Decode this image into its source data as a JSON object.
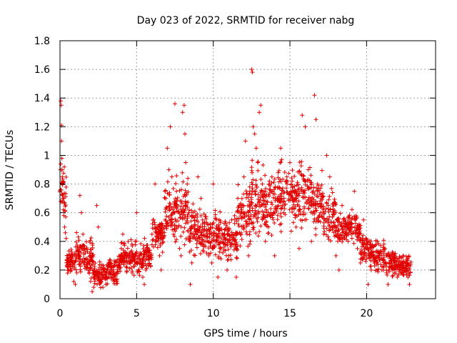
{
  "chart_data": {
    "type": "scatter",
    "title": "Day 023 of 2022, SRMTID for receiver nabg",
    "xlabel": "GPS time / hours",
    "ylabel": "SRMTID / TECUs",
    "xlim": [
      0,
      24.5
    ],
    "ylim": [
      0,
      1.8
    ],
    "x_ticks": [
      0,
      5,
      10,
      15,
      20
    ],
    "x_tick_labels": [
      "0",
      "5",
      "10",
      "15",
      "20"
    ],
    "y_ticks": [
      0,
      0.2,
      0.4,
      0.6,
      0.8,
      1.0,
      1.2,
      1.4,
      1.6,
      1.8
    ],
    "y_tick_labels": [
      "0",
      "0.2",
      "0.4",
      "0.6",
      "0.8",
      "1",
      "1.2",
      "1.4",
      "1.6",
      "1.8"
    ],
    "grid": true,
    "marker": "+",
    "color": "#e00000",
    "series": [
      {
        "name": "SRMTID",
        "points": [
          [
            0.05,
            1.38
          ],
          [
            0.08,
            1.35
          ],
          [
            0.1,
            1.21
          ],
          [
            0.1,
            1.1
          ],
          [
            0.12,
            0.98
          ],
          [
            0.12,
            0.9
          ],
          [
            0.15,
            0.85
          ],
          [
            0.18,
            0.82
          ],
          [
            0.2,
            0.7
          ],
          [
            0.22,
            0.62
          ],
          [
            0.25,
            0.58
          ],
          [
            0.3,
            0.5
          ],
          [
            0.35,
            0.46
          ],
          [
            0.4,
            0.42
          ],
          [
            0.45,
            0.25
          ],
          [
            0.5,
            0.22
          ],
          [
            0.6,
            0.3
          ],
          [
            0.7,
            0.2
          ],
          [
            0.8,
            0.25
          ],
          [
            0.9,
            0.12
          ],
          [
            1.0,
            0.1
          ],
          [
            1.1,
            0.18
          ],
          [
            1.2,
            0.3
          ],
          [
            1.3,
            0.72
          ],
          [
            1.4,
            0.6
          ],
          [
            1.5,
            0.45
          ],
          [
            1.6,
            0.35
          ],
          [
            1.7,
            0.28
          ],
          [
            1.8,
            0.22
          ],
          [
            1.9,
            0.18
          ],
          [
            2.0,
            0.12
          ],
          [
            2.1,
            0.05
          ],
          [
            2.2,
            0.08
          ],
          [
            2.3,
            0.18
          ],
          [
            2.4,
            0.65
          ],
          [
            2.5,
            0.5
          ],
          [
            2.6,
            0.22
          ],
          [
            2.7,
            0.12
          ],
          [
            2.8,
            0.08
          ],
          [
            3.0,
            0.1
          ],
          [
            3.2,
            0.15
          ],
          [
            3.4,
            0.2
          ],
          [
            3.5,
            0.12
          ],
          [
            3.7,
            0.18
          ],
          [
            3.9,
            0.25
          ],
          [
            4.0,
            0.35
          ],
          [
            4.1,
            0.45
          ],
          [
            4.3,
            0.3
          ],
          [
            4.5,
            0.25
          ],
          [
            4.7,
            0.18
          ],
          [
            4.9,
            0.4
          ],
          [
            5.0,
            0.6
          ],
          [
            5.2,
            0.3
          ],
          [
            5.4,
            0.15
          ],
          [
            5.5,
            0.1
          ],
          [
            5.6,
            0.2
          ],
          [
            5.8,
            0.3
          ],
          [
            6.0,
            0.45
          ],
          [
            6.1,
            0.55
          ],
          [
            6.2,
            0.8
          ],
          [
            6.3,
            0.4
          ],
          [
            6.5,
            0.3
          ],
          [
            6.6,
            0.2
          ],
          [
            6.8,
            0.5
          ],
          [
            6.9,
            0.7
          ],
          [
            7.0,
            1.05
          ],
          [
            7.1,
            0.9
          ],
          [
            7.2,
            1.2
          ],
          [
            7.3,
            0.85
          ],
          [
            7.4,
            0.6
          ],
          [
            7.5,
            1.36
          ],
          [
            7.6,
            0.75
          ],
          [
            7.7,
            0.5
          ],
          [
            7.8,
            0.35
          ],
          [
            7.9,
            0.3
          ],
          [
            8.0,
            1.3
          ],
          [
            8.1,
            1.35
          ],
          [
            8.15,
            1.15
          ],
          [
            8.2,
            0.95
          ],
          [
            8.3,
            0.8
          ],
          [
            8.4,
            0.6
          ],
          [
            8.5,
            0.1
          ],
          [
            8.6,
            0.25
          ],
          [
            8.8,
            0.45
          ],
          [
            9.0,
            0.85
          ],
          [
            9.2,
            0.7
          ],
          [
            9.3,
            0.55
          ],
          [
            9.5,
            0.4
          ],
          [
            9.7,
            0.3
          ],
          [
            9.9,
            0.25
          ],
          [
            10.0,
            0.8
          ],
          [
            10.2,
            0.55
          ],
          [
            10.3,
            0.15
          ],
          [
            10.5,
            0.35
          ],
          [
            10.7,
            0.45
          ],
          [
            10.9,
            0.2
          ],
          [
            11.0,
            0.3
          ],
          [
            11.2,
            0.55
          ],
          [
            11.4,
            0.4
          ],
          [
            11.5,
            0.15
          ],
          [
            11.6,
            0.7
          ],
          [
            11.8,
            0.6
          ],
          [
            12.0,
            0.85
          ],
          [
            12.1,
            1.1
          ],
          [
            12.2,
            0.45
          ],
          [
            12.3,
            0.3
          ],
          [
            12.4,
            0.65
          ],
          [
            12.5,
            1.6
          ],
          [
            12.55,
            1.58
          ],
          [
            12.6,
            1.2
          ],
          [
            12.7,
            1.15
          ],
          [
            12.8,
            1.05
          ],
          [
            12.9,
            0.95
          ],
          [
            13.0,
            1.3
          ],
          [
            13.1,
            1.35
          ],
          [
            13.2,
            0.8
          ],
          [
            13.3,
            0.6
          ],
          [
            13.4,
            0.4
          ],
          [
            13.6,
            0.5
          ],
          [
            13.8,
            0.75
          ],
          [
            14.0,
            0.3
          ],
          [
            14.2,
            0.7
          ],
          [
            14.4,
            1.05
          ],
          [
            14.6,
            0.6
          ],
          [
            14.8,
            0.85
          ],
          [
            15.0,
            0.95
          ],
          [
            15.2,
            0.75
          ],
          [
            15.4,
            0.5
          ],
          [
            15.6,
            0.35
          ],
          [
            15.8,
            1.28
          ],
          [
            16.0,
            1.2
          ],
          [
            16.2,
            0.9
          ],
          [
            16.4,
            0.4
          ],
          [
            16.5,
            0.65
          ],
          [
            16.6,
            1.42
          ],
          [
            16.7,
            1.25
          ],
          [
            16.8,
            0.8
          ],
          [
            17.0,
            0.6
          ],
          [
            17.2,
            0.45
          ],
          [
            17.4,
            1.0
          ],
          [
            17.6,
            0.85
          ],
          [
            17.8,
            0.5
          ],
          [
            18.0,
            0.3
          ],
          [
            18.2,
            0.2
          ],
          [
            18.4,
            0.65
          ],
          [
            18.6,
            0.55
          ],
          [
            18.8,
            0.4
          ],
          [
            19.0,
            0.45
          ],
          [
            19.2,
            0.75
          ],
          [
            19.4,
            0.35
          ],
          [
            19.6,
            0.25
          ],
          [
            19.8,
            0.55
          ],
          [
            20.0,
            0.3
          ],
          [
            20.1,
            0.1
          ],
          [
            20.3,
            0.2
          ],
          [
            20.5,
            0.3
          ],
          [
            20.7,
            0.4
          ],
          [
            21.0,
            0.2
          ],
          [
            21.2,
            0.35
          ],
          [
            21.4,
            0.1
          ],
          [
            21.6,
            0.25
          ],
          [
            21.8,
            0.3
          ],
          [
            22.0,
            0.15
          ],
          [
            22.2,
            0.2
          ],
          [
            22.4,
            0.3
          ],
          [
            22.6,
            0.25
          ],
          [
            22.7,
            0.15
          ],
          [
            22.8,
            0.1
          ]
        ]
      }
    ],
    "density_bands": [
      [
        0.0,
        0.4,
        0.45,
        0.95
      ],
      [
        0.4,
        1.0,
        0.15,
        0.35
      ],
      [
        1.0,
        1.6,
        0.15,
        0.45
      ],
      [
        1.6,
        2.2,
        0.12,
        0.4
      ],
      [
        2.2,
        3.0,
        0.05,
        0.25
      ],
      [
        3.0,
        3.8,
        0.08,
        0.3
      ],
      [
        3.8,
        4.6,
        0.12,
        0.4
      ],
      [
        4.6,
        5.4,
        0.12,
        0.4
      ],
      [
        5.4,
        6.0,
        0.15,
        0.4
      ],
      [
        6.0,
        6.8,
        0.3,
        0.55
      ],
      [
        6.8,
        7.6,
        0.35,
        0.8
      ],
      [
        7.6,
        8.4,
        0.3,
        0.85
      ],
      [
        8.4,
        9.2,
        0.25,
        0.65
      ],
      [
        9.2,
        10.0,
        0.25,
        0.6
      ],
      [
        10.0,
        10.8,
        0.2,
        0.6
      ],
      [
        10.8,
        11.6,
        0.22,
        0.6
      ],
      [
        11.6,
        12.4,
        0.3,
        0.8
      ],
      [
        12.4,
        13.2,
        0.35,
        0.95
      ],
      [
        13.2,
        14.0,
        0.35,
        0.9
      ],
      [
        14.0,
        14.8,
        0.4,
        0.95
      ],
      [
        14.8,
        15.6,
        0.45,
        0.9
      ],
      [
        15.6,
        16.4,
        0.4,
        0.95
      ],
      [
        16.4,
        17.2,
        0.4,
        0.85
      ],
      [
        17.2,
        18.0,
        0.35,
        0.75
      ],
      [
        18.0,
        18.8,
        0.35,
        0.6
      ],
      [
        18.8,
        19.6,
        0.35,
        0.6
      ],
      [
        19.6,
        20.4,
        0.2,
        0.45
      ],
      [
        20.4,
        21.2,
        0.15,
        0.4
      ],
      [
        21.2,
        22.0,
        0.12,
        0.35
      ],
      [
        22.0,
        22.9,
        0.12,
        0.32
      ]
    ]
  }
}
